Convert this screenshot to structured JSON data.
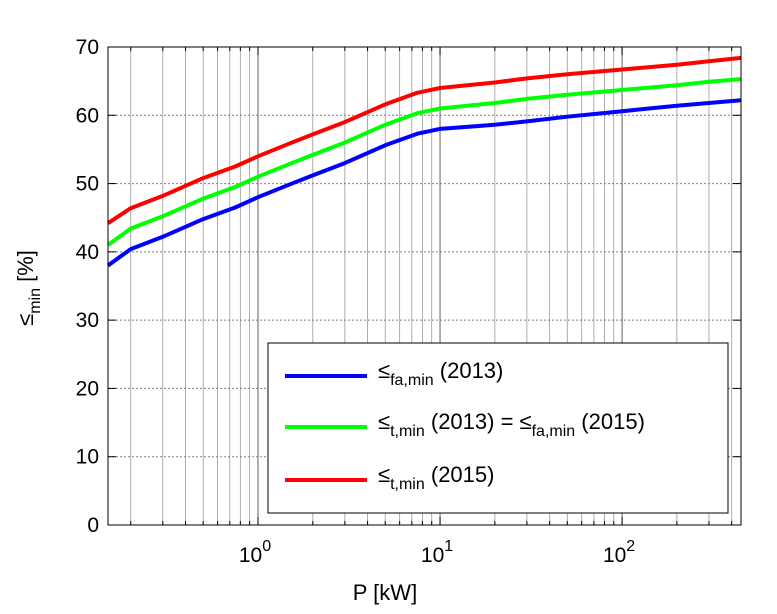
{
  "chart_data": {
    "type": "line",
    "title": "",
    "xlabel": "P [kW]",
    "ylabel": "≤",
    "ylabel_sub": "min",
    "ylabel_suffix": " [%]",
    "xscale": "log",
    "xlim": [
      0.15,
      450
    ],
    "ylim": [
      0,
      70
    ],
    "grid": true,
    "x_ticks": [
      {
        "value": 1,
        "base": "10",
        "exp": "0"
      },
      {
        "value": 10,
        "base": "10",
        "exp": "1"
      },
      {
        "value": 100,
        "base": "10",
        "exp": "2"
      }
    ],
    "y_ticks": [
      0,
      10,
      20,
      30,
      40,
      50,
      60,
      70
    ],
    "legend_position": "bottom-right",
    "series": [
      {
        "name": "≤ fa,min (2013)",
        "legend_sym": "≤",
        "legend_sub": "fa,min",
        "legend_suffix": " (2013)",
        "color": "#0000ff",
        "x": [
          0.15,
          0.2,
          0.3,
          0.5,
          0.75,
          1.0,
          1.5,
          2.0,
          3.0,
          5.0,
          7.5,
          10,
          20,
          30,
          50,
          100,
          200,
          300,
          450
        ],
        "y": [
          38.0,
          40.4,
          42.2,
          44.8,
          46.5,
          48.0,
          49.9,
          51.2,
          53.0,
          55.6,
          57.3,
          58.0,
          58.6,
          59.1,
          59.8,
          60.6,
          61.4,
          61.8,
          62.2
        ]
      },
      {
        "name": "≤ t,min (2013) = ≤ fa,min (2015)",
        "legend_sym": "≤",
        "legend_sub": "t,min",
        "legend_suffix": " (2013) = ",
        "legend_sym2": "≤",
        "legend_sub2": "fa,min",
        "legend_suffix2": " (2015)",
        "color": "#00ff00",
        "x": [
          0.15,
          0.2,
          0.3,
          0.5,
          0.75,
          1.0,
          1.5,
          2.0,
          3.0,
          5.0,
          7.5,
          10,
          20,
          30,
          50,
          100,
          200,
          300,
          450
        ],
        "y": [
          41.0,
          43.4,
          45.2,
          47.8,
          49.5,
          51.0,
          52.9,
          54.2,
          56.0,
          58.6,
          60.3,
          61.0,
          61.8,
          62.4,
          63.0,
          63.7,
          64.4,
          64.9,
          65.3
        ]
      },
      {
        "name": "≤ t,min (2015)",
        "legend_sym": "≤",
        "legend_sub": "t,min",
        "legend_suffix": " (2015)",
        "color": "#ff0000",
        "x": [
          0.15,
          0.2,
          0.3,
          0.5,
          0.75,
          1.0,
          1.5,
          2.0,
          3.0,
          5.0,
          7.5,
          10,
          20,
          30,
          50,
          100,
          200,
          300,
          450
        ],
        "y": [
          44.2,
          46.4,
          48.2,
          50.8,
          52.5,
          54.0,
          55.9,
          57.2,
          59.0,
          61.6,
          63.3,
          64.0,
          64.8,
          65.4,
          66.0,
          66.7,
          67.4,
          67.9,
          68.4
        ]
      }
    ]
  }
}
